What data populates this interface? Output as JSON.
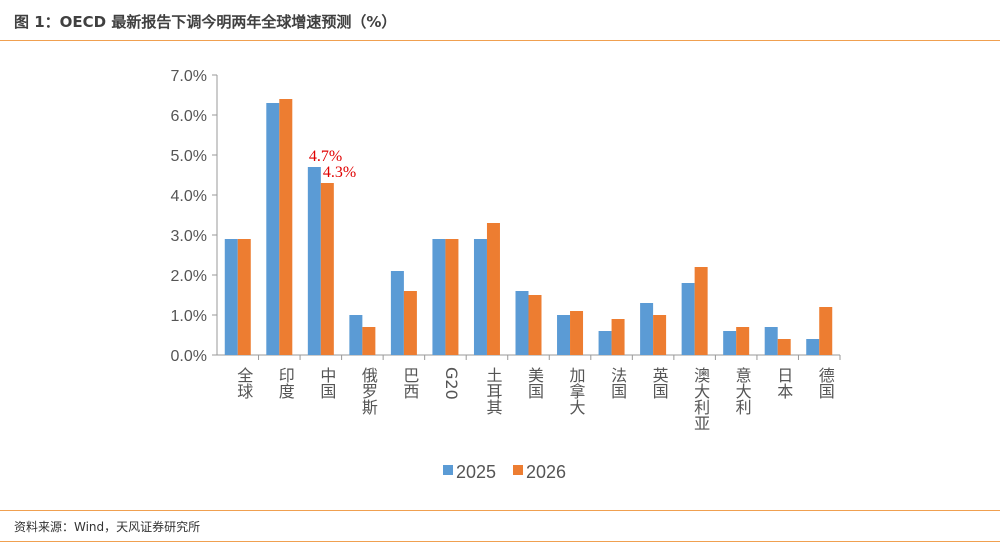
{
  "title": "图 1：OECD 最新报告下调今明两年全球增速预测（%）",
  "source": "资料来源：Wind，天风证券研究所",
  "chart_data": {
    "type": "bar",
    "title": "OECD 最新报告下调今明两年全球增速预测（%）",
    "categories": [
      "全球",
      "印度",
      "中国",
      "俄罗斯",
      "巴西",
      "G20",
      "土耳其",
      "美国",
      "加拿大",
      "法国",
      "英国",
      "澳大利亚",
      "意大利",
      "日本",
      "德国"
    ],
    "series": [
      {
        "name": "2025",
        "color": "#5b9bd5",
        "values": [
          2.9,
          6.3,
          4.7,
          1.0,
          2.1,
          2.9,
          2.9,
          1.6,
          1.0,
          0.6,
          1.3,
          1.8,
          0.6,
          0.7,
          0.4
        ]
      },
      {
        "name": "2026",
        "color": "#ed7d31",
        "values": [
          2.9,
          6.4,
          4.3,
          0.7,
          1.6,
          2.9,
          3.3,
          1.5,
          1.1,
          0.9,
          1.0,
          2.2,
          0.7,
          0.4,
          1.2
        ]
      }
    ],
    "ylim": [
      0,
      7
    ],
    "yticks": [
      "0.0%",
      "1.0%",
      "2.0%",
      "3.0%",
      "4.0%",
      "5.0%",
      "6.0%",
      "7.0%"
    ],
    "annotations": [
      {
        "category": "中国",
        "series": "2025",
        "text": "4.7%"
      },
      {
        "category": "中国",
        "series": "2026",
        "text": "4.3%"
      }
    ],
    "legend": "bottom-center",
    "grid": false
  }
}
